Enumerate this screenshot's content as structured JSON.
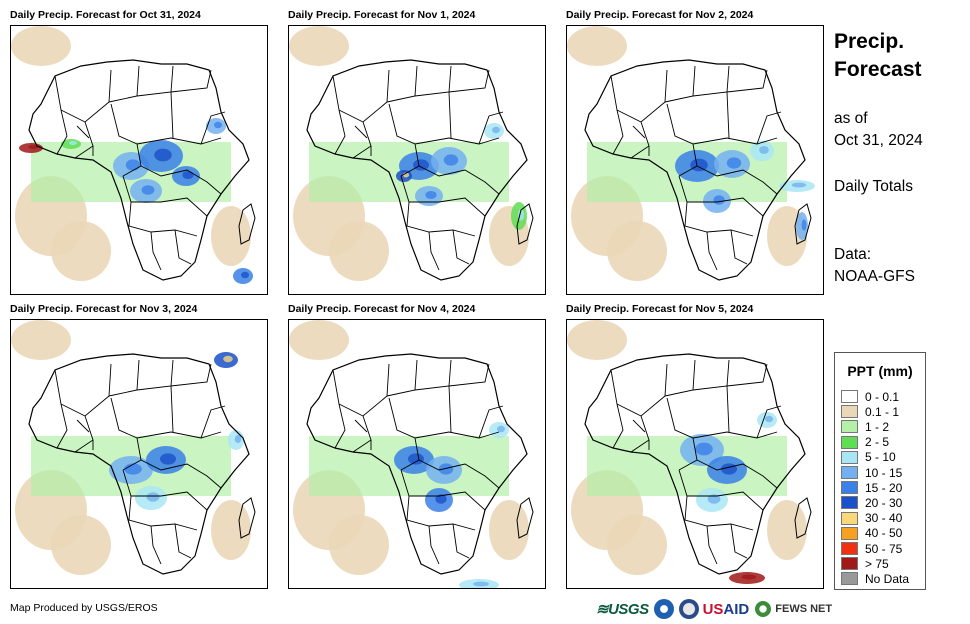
{
  "panels": [
    {
      "title": "Daily Precip. Forecast for Oct 31, 2024"
    },
    {
      "title": "Daily Precip. Forecast for Nov 1, 2024"
    },
    {
      "title": "Daily Precip. Forecast for Nov 2, 2024"
    },
    {
      "title": "Daily Precip. Forecast for Nov 3, 2024"
    },
    {
      "title": "Daily Precip. Forecast for Nov 4, 2024"
    },
    {
      "title": "Daily Precip. Forecast for Nov 5, 2024"
    }
  ],
  "sidebar": {
    "title_line1": "Precip.",
    "title_line2": "Forecast",
    "asof_line1": "as of",
    "asof_line2": "Oct 31, 2024",
    "daily_totals": "Daily Totals",
    "data_label": "Data:",
    "data_source": "NOAA-GFS"
  },
  "legend": {
    "title": "PPT (mm)",
    "items": [
      {
        "label": "0 - 0.1",
        "color": "#ffffff"
      },
      {
        "label": "0.1 - 1",
        "color": "#ead7b8"
      },
      {
        "label": "1 - 2",
        "color": "#b4f0a8"
      },
      {
        "label": "2 - 5",
        "color": "#5fdd55"
      },
      {
        "label": "5 - 10",
        "color": "#a8e6f5"
      },
      {
        "label": "10 - 15",
        "color": "#74b0f0"
      },
      {
        "label": "15 - 20",
        "color": "#3a80e8"
      },
      {
        "label": "20 - 30",
        "color": "#1a50c8"
      },
      {
        "label": "30 - 40",
        "color": "#f8d878"
      },
      {
        "label": "40 - 50",
        "color": "#f8a020"
      },
      {
        "label": "50 - 75",
        "color": "#f03010"
      },
      {
        "label": "> 75",
        "color": "#a01818"
      },
      {
        "label": "No Data",
        "color": "#999999"
      }
    ]
  },
  "footer": {
    "credit": "Map Produced by USGS/EROS",
    "logo_usgs": "≋USGS",
    "logo_usaid_u": "US",
    "logo_usaid_rest": "AID",
    "logo_fews": "FEWS NET"
  }
}
